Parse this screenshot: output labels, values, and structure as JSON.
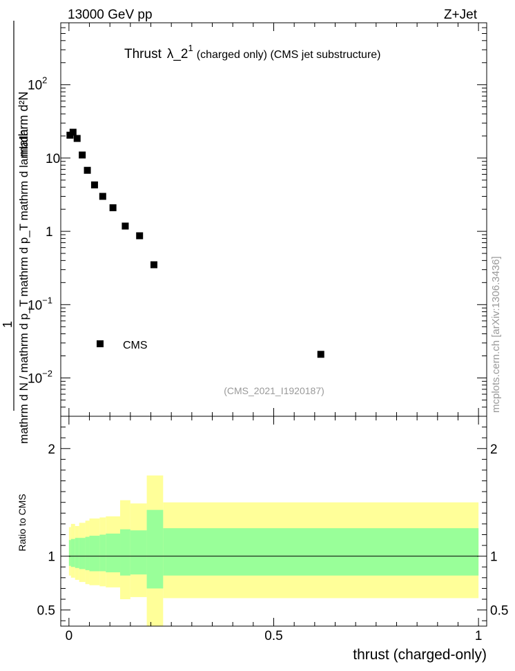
{
  "header": {
    "left_label": "13000 GeV pp",
    "right_label": "Z+Jet"
  },
  "side_credit": "mcplots.cern.ch [arXiv:1306.3436]",
  "colors": {
    "band_outer": "#ffff99",
    "band_inner": "#99ff99",
    "marker": "#000000",
    "watermark": "#999999"
  },
  "chart_data": [
    {
      "type": "scatter",
      "name": "main-panel",
      "title_main": "Thrust",
      "title_lambda": "λ_2",
      "title_sup": "1",
      "title_tail": "(charged only) (CMS jet substructure)",
      "ylabel_top": "1",
      "ylabel_numerator": "mathrm d²N",
      "ylabel_bottom": "mathrm d N / mathrm d p_T mathrm d p_T mathrm d lambda",
      "yscale": "log",
      "ylim": [
        0.003,
        700
      ],
      "xlim": [
        -0.02,
        1.02
      ],
      "ytick_labels": [
        {
          "value": 0.01,
          "base": "10",
          "exp": "−2"
        },
        {
          "value": 0.1,
          "base": "10",
          "exp": "−1"
        },
        {
          "value": 1,
          "base": "1",
          "exp": ""
        },
        {
          "value": 10,
          "base": "10",
          "exp": ""
        },
        {
          "value": 100,
          "base": "10",
          "exp": "2"
        }
      ],
      "legend_label": "CMS",
      "watermark": "(CMS_2021_I1920187)",
      "series": [
        {
          "name": "CMS",
          "x": [
            0.0025,
            0.01,
            0.02,
            0.0325,
            0.045,
            0.0625,
            0.0825,
            0.1075,
            0.1375,
            0.1725,
            0.2075,
            0.615
          ],
          "y": [
            20.5,
            22.5,
            18.5,
            11.0,
            6.8,
            4.3,
            3.0,
            2.1,
            1.18,
            0.87,
            0.35,
            0.021
          ]
        }
      ]
    },
    {
      "type": "area",
      "name": "ratio-panel",
      "ylabel": "Ratio to CMS",
      "xlabel": "thrust (charged-only)",
      "ylim": [
        0.35,
        2.3
      ],
      "xlim": [
        -0.02,
        1.02
      ],
      "ytick_labels": [
        "0.5",
        "1",
        "2"
      ],
      "ytick_values": [
        0.5,
        1,
        2
      ],
      "xtick_labels": [
        "0",
        "0.5",
        "1"
      ],
      "xtick_values": [
        0,
        0.5,
        1
      ],
      "bins": [
        {
          "x0": 0.0,
          "x1": 0.005,
          "outer": [
            0.82,
            1.27
          ],
          "inner": [
            0.91,
            1.15
          ]
        },
        {
          "x0": 0.005,
          "x1": 0.015,
          "outer": [
            0.8,
            1.3
          ],
          "inner": [
            0.9,
            1.16
          ]
        },
        {
          "x0": 0.015,
          "x1": 0.025,
          "outer": [
            0.78,
            1.28
          ],
          "inner": [
            0.89,
            1.17
          ]
        },
        {
          "x0": 0.025,
          "x1": 0.04,
          "outer": [
            0.76,
            1.31
          ],
          "inner": [
            0.88,
            1.17
          ]
        },
        {
          "x0": 0.04,
          "x1": 0.05,
          "outer": [
            0.74,
            1.33
          ],
          "inner": [
            0.87,
            1.18
          ]
        },
        {
          "x0": 0.05,
          "x1": 0.075,
          "outer": [
            0.73,
            1.35
          ],
          "inner": [
            0.86,
            1.19
          ]
        },
        {
          "x0": 0.075,
          "x1": 0.09,
          "outer": [
            0.72,
            1.36
          ],
          "inner": [
            0.86,
            1.2
          ]
        },
        {
          "x0": 0.09,
          "x1": 0.125,
          "outer": [
            0.71,
            1.37
          ],
          "inner": [
            0.85,
            1.21
          ]
        },
        {
          "x0": 0.125,
          "x1": 0.15,
          "outer": [
            0.6,
            1.52
          ],
          "inner": [
            0.82,
            1.25
          ]
        },
        {
          "x0": 0.15,
          "x1": 0.19,
          "outer": [
            0.62,
            1.49
          ],
          "inner": [
            0.83,
            1.24
          ]
        },
        {
          "x0": 0.19,
          "x1": 0.23,
          "outer": [
            0.3,
            1.75
          ],
          "inner": [
            0.7,
            1.43
          ]
        },
        {
          "x0": 0.23,
          "x1": 1.0,
          "outer": [
            0.61,
            1.5
          ],
          "inner": [
            0.82,
            1.26
          ]
        }
      ],
      "reference_line": 1.0
    }
  ]
}
